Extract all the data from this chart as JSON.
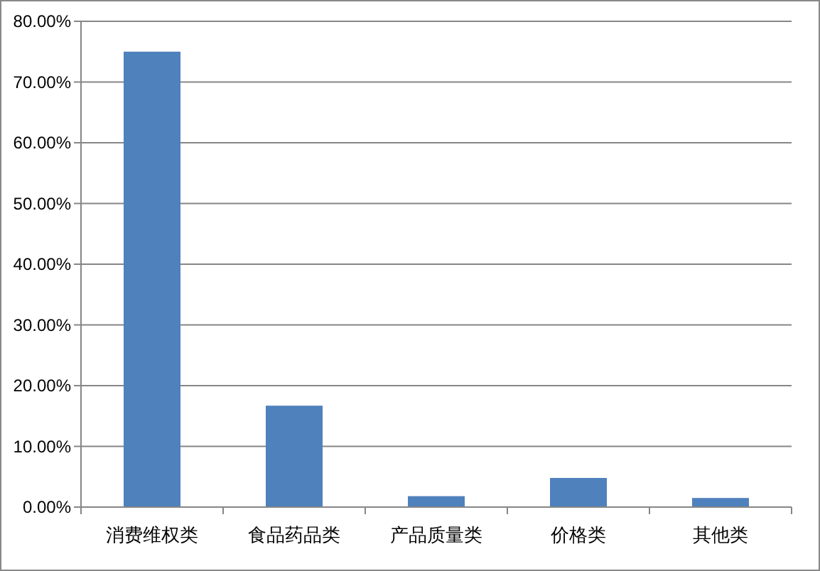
{
  "chart_data": {
    "type": "bar",
    "categories": [
      "消费维权类",
      "食品药品类",
      "产品质量类",
      "价格类",
      "其他类"
    ],
    "values": [
      75,
      16.7,
      1.8,
      4.8,
      1.5
    ],
    "color": "#4f81bd",
    "ylim": [
      0,
      80
    ],
    "yticks": [
      {
        "value": 0,
        "label": "0.00%"
      },
      {
        "value": 10,
        "label": "10.00%"
      },
      {
        "value": 20,
        "label": "20.00%"
      },
      {
        "value": 30,
        "label": "30.00%"
      },
      {
        "value": 40,
        "label": "40.00%"
      },
      {
        "value": 50,
        "label": "50.00%"
      },
      {
        "value": 60,
        "label": "60.00%"
      },
      {
        "value": 70,
        "label": "70.00%"
      },
      {
        "value": 80,
        "label": "80.00%"
      }
    ],
    "grid": "y"
  }
}
